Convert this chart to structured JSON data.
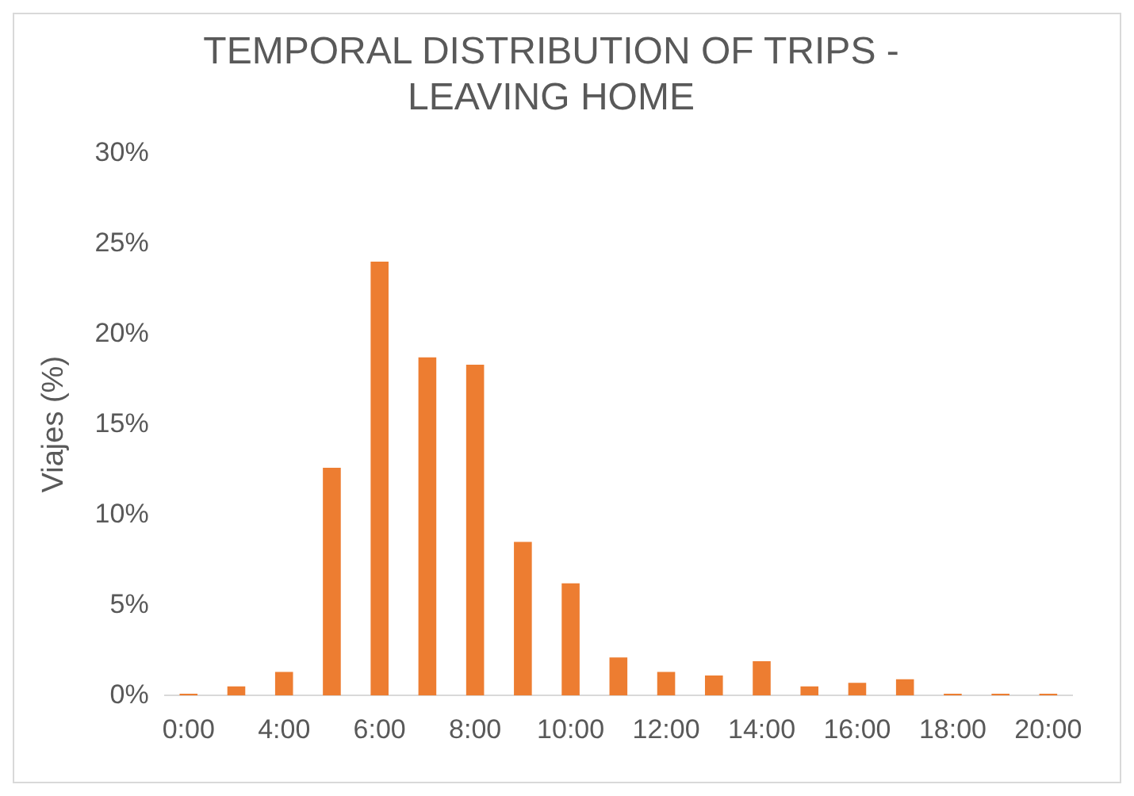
{
  "chart_data": {
    "type": "bar",
    "title": "TEMPORAL DISTRIBUTION OF TRIPS - LEAVING HOME",
    "ylabel": "Viajes (%)",
    "categories": [
      "0:00",
      null,
      "4:00",
      null,
      "6:00",
      null,
      "8:00",
      null,
      "10:00",
      null,
      "12:00",
      null,
      "14:00",
      null,
      "16:00",
      null,
      "18:00",
      null,
      "20:00"
    ],
    "values": [
      0.1,
      0.5,
      1.3,
      12.6,
      24.0,
      18.7,
      18.3,
      8.5,
      6.2,
      2.1,
      1.3,
      1.1,
      1.9,
      0.5,
      0.7,
      0.9,
      0.1,
      0.1,
      0.1
    ],
    "color": "#ed7d31",
    "ylim": [
      0,
      30
    ],
    "yticks": [
      {
        "value": 0,
        "label": "0%"
      },
      {
        "value": 5,
        "label": "5%"
      },
      {
        "value": 10,
        "label": "10%"
      },
      {
        "value": 15,
        "label": "15%"
      },
      {
        "value": 20,
        "label": "20%"
      },
      {
        "value": 25,
        "label": "25%"
      },
      {
        "value": 30,
        "label": "30%"
      }
    ],
    "grid": false,
    "legend": false
  }
}
